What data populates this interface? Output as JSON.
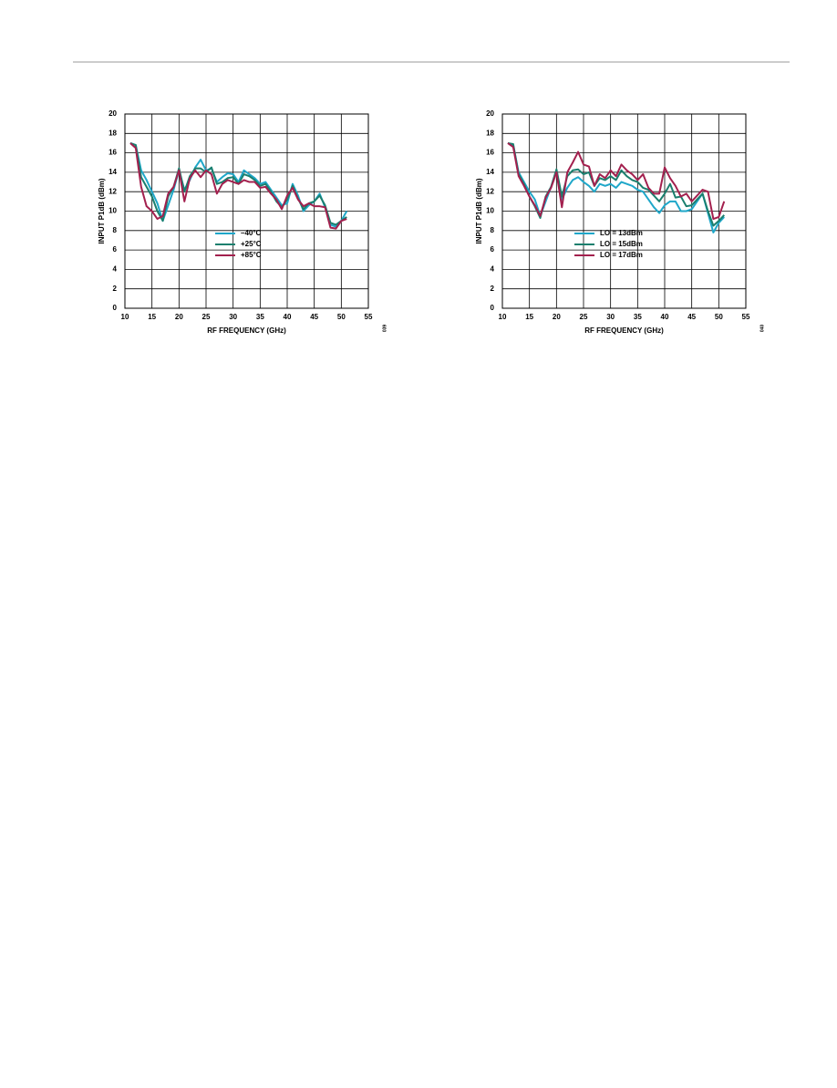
{
  "chart_data": [
    {
      "type": "line",
      "figure_id": "039",
      "xlabel": "RF FREQUENCY (GHz)",
      "ylabel": "INPUT P1dB (dBm)",
      "x": [
        11,
        12,
        13,
        14,
        15,
        16,
        17,
        18,
        19,
        20,
        21,
        22,
        23,
        24,
        25,
        26,
        27,
        28,
        29,
        30,
        31,
        32,
        33,
        34,
        35,
        36,
        37,
        38,
        39,
        40,
        41,
        42,
        43,
        44,
        45,
        46,
        47,
        48,
        49,
        50,
        51
      ],
      "series": [
        {
          "name": "–40°C",
          "color": "#1fa7c9",
          "values": [
            17,
            16.8,
            14.2,
            13.2,
            12,
            10.8,
            9,
            10.6,
            12.2,
            14.2,
            12.2,
            13.2,
            14.5,
            15.3,
            14.2,
            14.4,
            13,
            13.5,
            13.9,
            13.8,
            13,
            14.2,
            13.8,
            13.4,
            12.8,
            13,
            12.2,
            11.4,
            10.6,
            10.8,
            12.8,
            11.6,
            10,
            10.6,
            11,
            11.8,
            10.4,
            8.6,
            8.4,
            9,
            10
          ]
        },
        {
          "name": "+25°C",
          "color": "#1a7f6e",
          "values": [
            17,
            16.8,
            13.5,
            12.5,
            11.5,
            10,
            9,
            11.5,
            12.5,
            14.4,
            12,
            13.6,
            14.4,
            14.4,
            14,
            14.5,
            12.8,
            13,
            13.4,
            13.5,
            12.8,
            13.8,
            13.6,
            13.2,
            12.6,
            12.8,
            12,
            11,
            10.4,
            11.2,
            12.6,
            11.3,
            10.2,
            10.8,
            11,
            11.6,
            10.6,
            8.8,
            8.6,
            9,
            9.4
          ]
        },
        {
          "name": "+85°C",
          "color": "#a3204e",
          "values": [
            17,
            16.5,
            12.5,
            10.5,
            10,
            9.2,
            9.5,
            11.8,
            12.5,
            14.2,
            11,
            13.4,
            14.2,
            13.5,
            14.2,
            13.8,
            11.8,
            12.8,
            13.2,
            13,
            12.8,
            13.2,
            13,
            13,
            12.4,
            12.5,
            11.8,
            11.2,
            10.2,
            11.6,
            12.4,
            11.2,
            10.5,
            10.8,
            10.5,
            10.5,
            10.4,
            8.3,
            8.2,
            9,
            9.2
          ]
        }
      ],
      "xlim": [
        10,
        55
      ],
      "xticks": [
        10,
        15,
        20,
        25,
        30,
        35,
        40,
        45,
        50,
        55
      ],
      "ylim": [
        0,
        20
      ],
      "yticks": [
        0,
        2,
        4,
        6,
        8,
        10,
        12,
        14,
        16,
        18,
        20
      ],
      "grid": true
    },
    {
      "type": "line",
      "figure_id": "040",
      "xlabel": "RF FREQUENCY (GHz)",
      "ylabel": "INPUT P1dB (dBm)",
      "x": [
        11,
        12,
        13,
        14,
        15,
        16,
        17,
        18,
        19,
        20,
        21,
        22,
        23,
        24,
        25,
        26,
        27,
        28,
        29,
        30,
        31,
        32,
        33,
        34,
        35,
        36,
        37,
        38,
        39,
        40,
        41,
        42,
        43,
        44,
        45,
        46,
        47,
        48,
        49,
        50,
        51
      ],
      "series": [
        {
          "name": "LO = 13dBm",
          "color": "#1fa7c9",
          "values": [
            17,
            16.8,
            14,
            13,
            12,
            11.2,
            9.5,
            11,
            12.5,
            14.2,
            11.2,
            12.4,
            13.2,
            13.5,
            13,
            12.6,
            12,
            12.8,
            12.6,
            12.8,
            12.4,
            13,
            12.8,
            12.6,
            12.2,
            12,
            11.2,
            10.4,
            9.8,
            10.6,
            11,
            11,
            10,
            10,
            10.2,
            11,
            11.8,
            9.8,
            7.8,
            8.8,
            9.4
          ]
        },
        {
          "name": "LO = 15dBm",
          "color": "#1a7f6e",
          "values": [
            17,
            16.9,
            13.8,
            12.8,
            11.5,
            10.5,
            9.3,
            11.5,
            12.5,
            14.3,
            11.5,
            13.6,
            14.2,
            14.3,
            13.8,
            14,
            12.6,
            13.4,
            13.2,
            13.6,
            13.2,
            14.2,
            13.6,
            13.2,
            13,
            12.4,
            12.2,
            11.6,
            11,
            11.8,
            12.8,
            11.4,
            11.5,
            10.5,
            10.6,
            11.2,
            11.8,
            10,
            8.5,
            9,
            9.6
          ]
        },
        {
          "name": "LO = 17dBm",
          "color": "#a3204e",
          "values": [
            17,
            16.6,
            13.6,
            12.6,
            11.5,
            10.6,
            9.5,
            11.4,
            12.4,
            14,
            10.4,
            14,
            15,
            16.1,
            14.8,
            14.6,
            12.6,
            13.8,
            13.4,
            14.2,
            13.6,
            14.8,
            14.2,
            13.8,
            13.2,
            13.8,
            12.4,
            11.8,
            11.8,
            14.5,
            13.4,
            12.6,
            11.5,
            11.8,
            11,
            11.6,
            12.2,
            12,
            9.2,
            9.4,
            11
          ]
        }
      ],
      "xlim": [
        10,
        55
      ],
      "xticks": [
        10,
        15,
        20,
        25,
        30,
        35,
        40,
        45,
        50,
        55
      ],
      "ylim": [
        0,
        20
      ],
      "yticks": [
        0,
        2,
        4,
        6,
        8,
        10,
        12,
        14,
        16,
        18,
        20
      ],
      "grid": true
    }
  ]
}
